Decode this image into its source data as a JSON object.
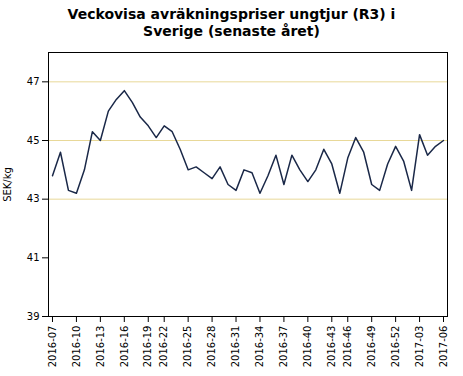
{
  "chart_data": {
    "type": "line",
    "title": "Veckovisa avräkningspriser ungtjur (R3) i\nSverige (senaste året)",
    "ylabel": "SEK/kg",
    "categories": [
      "2016-07",
      null,
      null,
      "2016-10",
      null,
      null,
      "2016-13",
      null,
      null,
      "2016-16",
      null,
      null,
      "2016-19",
      null,
      "2016-22",
      null,
      null,
      "2016-25",
      null,
      null,
      "2016-28",
      null,
      null,
      "2016-31",
      null,
      null,
      "2016-34",
      null,
      null,
      "2016-37",
      null,
      null,
      "2016-40",
      null,
      null,
      "2016-43",
      null,
      "2016-46",
      null,
      null,
      "2016-49",
      null,
      null,
      "2016-52",
      null,
      null,
      "2017-03",
      null,
      null,
      "2017-06"
    ],
    "values": [
      43.8,
      44.6,
      43.3,
      43.2,
      44.0,
      45.3,
      45.0,
      46.0,
      46.4,
      46.7,
      46.3,
      45.8,
      45.5,
      45.1,
      45.5,
      45.3,
      44.7,
      44.0,
      44.1,
      43.9,
      43.7,
      44.1,
      43.5,
      43.3,
      44.0,
      43.9,
      43.2,
      43.8,
      44.5,
      43.5,
      44.5,
      44.0,
      43.6,
      44.0,
      44.7,
      44.2,
      43.2,
      44.4,
      45.1,
      44.6,
      43.5,
      43.3,
      44.2,
      44.8,
      44.3,
      43.3,
      45.2,
      44.5,
      44.8,
      45.0
    ],
    "color": "#1a2848",
    "ylim": [
      39,
      48
    ],
    "yticks": [
      39,
      41,
      43,
      45,
      47
    ],
    "hlines": [
      43,
      45,
      47
    ],
    "hline_color": "#e8d898"
  }
}
